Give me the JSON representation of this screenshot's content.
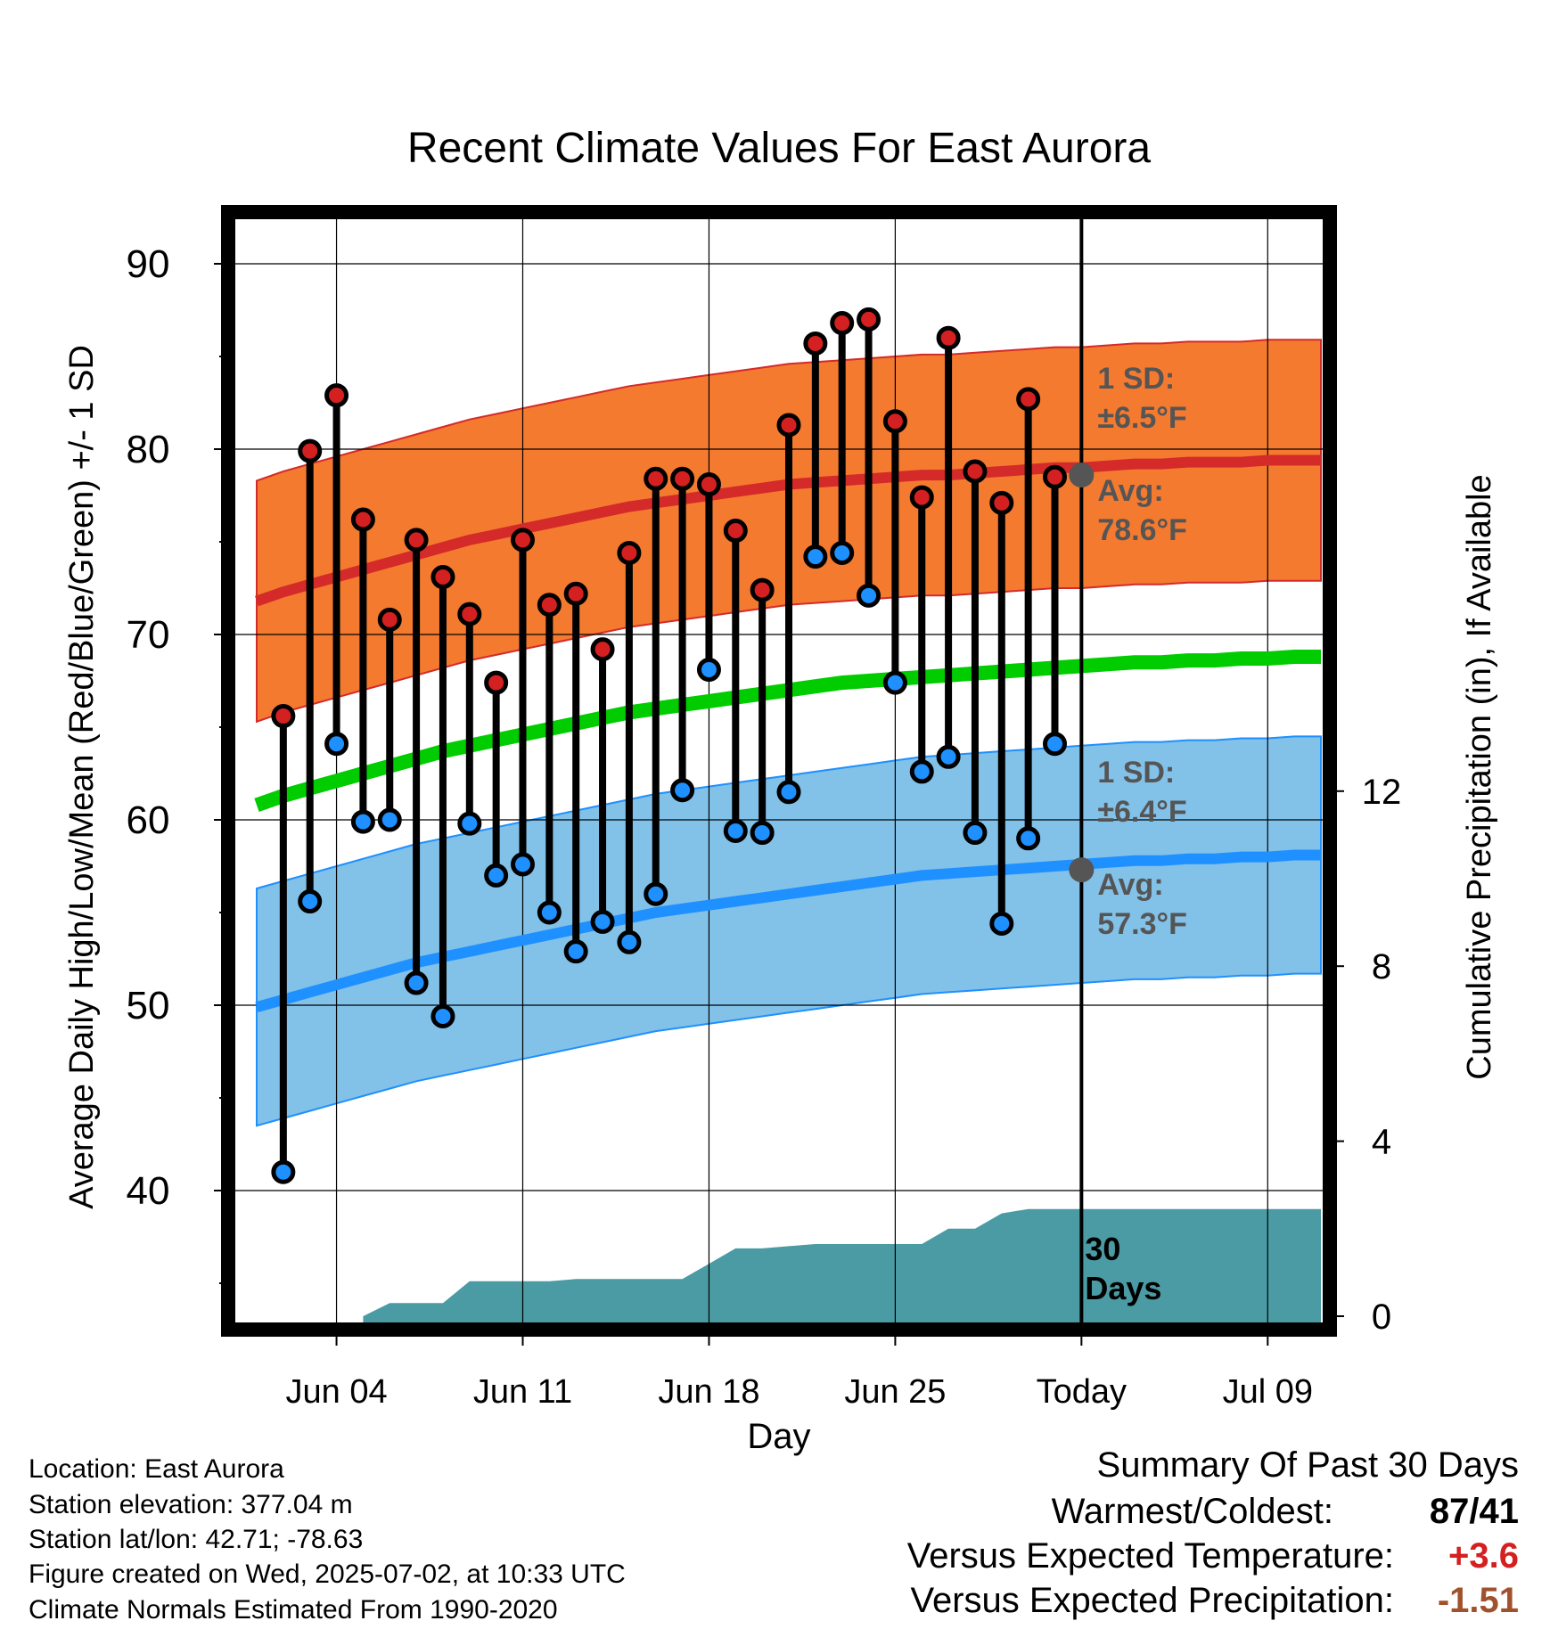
{
  "chart_data": {
    "type": "line",
    "title": "Recent Climate Values For East Aurora",
    "xlabel": "Day",
    "ylabel": "Average Daily High/Low/Mean (Red/Blue/Green) +/- 1 SD",
    "y2label": "Cumulative Precipitation (in), If Available",
    "x_tick_labels": [
      "Jun 04",
      "Jun 11",
      "Jun 18",
      "Jun 25",
      "Today",
      "Jul 09"
    ],
    "y_ticks": [
      40,
      50,
      60,
      70,
      80,
      90
    ],
    "y2_ticks": [
      0,
      4,
      8,
      12
    ],
    "ylim": [
      33.5,
      92.5
    ],
    "y2lim": [
      0,
      24
    ],
    "grid": true,
    "dates": [
      "Jun 01",
      "Jun 02",
      "Jun 03",
      "Jun 04",
      "Jun 05",
      "Jun 06",
      "Jun 07",
      "Jun 08",
      "Jun 09",
      "Jun 10",
      "Jun 11",
      "Jun 12",
      "Jun 13",
      "Jun 14",
      "Jun 15",
      "Jun 16",
      "Jun 17",
      "Jun 18",
      "Jun 19",
      "Jun 20",
      "Jun 21",
      "Jun 22",
      "Jun 23",
      "Jun 24",
      "Jun 25",
      "Jun 26",
      "Jun 27",
      "Jun 28",
      "Jun 29",
      "Jun 30",
      "Jul 01",
      "Jul 02",
      "Jul 03",
      "Jul 04",
      "Jul 05",
      "Jul 06",
      "Jul 07",
      "Jul 08",
      "Jul 09",
      "Jul 10",
      "Jul 11"
    ],
    "observed": {
      "dates": [
        "Jun 02",
        "Jun 03",
        "Jun 04",
        "Jun 05",
        "Jun 06",
        "Jun 07",
        "Jun 08",
        "Jun 09",
        "Jun 10",
        "Jun 11",
        "Jun 12",
        "Jun 13",
        "Jun 14",
        "Jun 15",
        "Jun 16",
        "Jun 17",
        "Jun 18",
        "Jun 19",
        "Jun 20",
        "Jun 21",
        "Jun 22",
        "Jun 23",
        "Jun 24",
        "Jun 25",
        "Jun 26",
        "Jun 27",
        "Jun 28",
        "Jun 29",
        "Jun 30",
        "Jul 01"
      ],
      "high": [
        65.6,
        79.9,
        82.9,
        76.2,
        70.8,
        75.1,
        73.1,
        71.1,
        67.4,
        75.1,
        71.6,
        72.2,
        69.2,
        74.4,
        78.4,
        78.4,
        78.1,
        75.6,
        72.4,
        81.3,
        85.7,
        86.8,
        87.0,
        81.5,
        77.4,
        86.0,
        78.8,
        77.1,
        82.7,
        78.5
      ],
      "low": [
        41.0,
        55.6,
        64.1,
        59.9,
        60.0,
        51.2,
        49.4,
        59.8,
        57.0,
        57.6,
        55.0,
        52.9,
        54.5,
        53.4,
        56.0,
        61.6,
        68.1,
        59.4,
        59.3,
        61.5,
        74.2,
        74.4,
        72.1,
        67.4,
        62.6,
        63.4,
        59.3,
        54.4,
        59.0,
        64.1
      ]
    },
    "normals": {
      "high_mean": [
        71.8,
        72.3,
        72.7,
        73.1,
        73.5,
        73.9,
        74.3,
        74.7,
        75.1,
        75.4,
        75.7,
        76.0,
        76.3,
        76.6,
        76.9,
        77.1,
        77.3,
        77.5,
        77.7,
        77.9,
        78.1,
        78.2,
        78.3,
        78.4,
        78.5,
        78.6,
        78.6,
        78.7,
        78.8,
        78.9,
        79.0,
        79.0,
        79.1,
        79.2,
        79.2,
        79.3,
        79.3,
        79.3,
        79.4,
        79.4,
        79.4
      ],
      "high_sd": 6.5,
      "low_mean": [
        49.9,
        50.3,
        50.7,
        51.1,
        51.5,
        51.9,
        52.3,
        52.6,
        52.9,
        53.2,
        53.5,
        53.8,
        54.1,
        54.4,
        54.7,
        55.0,
        55.2,
        55.4,
        55.6,
        55.8,
        56.0,
        56.2,
        56.4,
        56.6,
        56.8,
        57.0,
        57.1,
        57.2,
        57.3,
        57.4,
        57.5,
        57.6,
        57.7,
        57.8,
        57.8,
        57.9,
        57.9,
        58.0,
        58.0,
        58.1,
        58.1
      ],
      "low_sd": 6.4,
      "mean": [
        60.8,
        61.3,
        61.7,
        62.1,
        62.5,
        62.9,
        63.3,
        63.7,
        64.0,
        64.3,
        64.6,
        64.9,
        65.2,
        65.5,
        65.8,
        66.0,
        66.2,
        66.4,
        66.6,
        66.8,
        67.0,
        67.2,
        67.4,
        67.5,
        67.6,
        67.7,
        67.8,
        67.9,
        68.0,
        68.1,
        68.2,
        68.3,
        68.4,
        68.5,
        68.5,
        68.6,
        68.6,
        68.7,
        68.7,
        68.8,
        68.8
      ]
    },
    "precip_cumulative": {
      "dates": [
        "Jun 05",
        "Jun 06",
        "Jun 07",
        "Jun 08",
        "Jun 09",
        "Jun 10",
        "Jun 11",
        "Jun 12",
        "Jun 13",
        "Jun 14",
        "Jun 15",
        "Jun 16",
        "Jun 17",
        "Jun 18",
        "Jun 19",
        "Jun 20",
        "Jun 21",
        "Jun 22",
        "Jun 23",
        "Jun 24",
        "Jun 25",
        "Jun 26",
        "Jun 27",
        "Jun 28",
        "Jun 29",
        "Jun 30",
        "Jul 01"
      ],
      "values": [
        0.0,
        0.3,
        0.3,
        0.3,
        0.8,
        0.8,
        0.8,
        0.8,
        0.85,
        0.85,
        0.85,
        0.85,
        0.85,
        1.2,
        1.55,
        1.55,
        1.6,
        1.65,
        1.65,
        1.65,
        1.65,
        1.65,
        2.0,
        2.0,
        2.35,
        2.45,
        2.45
      ],
      "today_value": 2.45,
      "color": "#4a9ba3"
    },
    "annotations": {
      "high_sd_title": "1 SD:",
      "high_sd_value": "±6.5°F",
      "high_avg_title": "Avg:",
      "high_avg_value": "78.6°F",
      "high_avg": 78.6,
      "low_sd_title": "1 SD:",
      "low_sd_value": "±6.4°F",
      "low_avg_title": "Avg:",
      "low_avg_value": "57.3°F",
      "low_avg": 57.3,
      "precip_days_line1": "30",
      "precip_days_line2": "Days"
    },
    "colors": {
      "high_band": "#f47a2f",
      "high_line": "#d42a2a",
      "low_band": "#82c1e8",
      "low_line": "#1e90ff",
      "mean_line": "#00cc00",
      "high_marker": "#d42020",
      "low_marker": "#1e90ff",
      "annotation_text": "#555555"
    }
  },
  "info": {
    "location": "Location: East Aurora",
    "elevation": "Station elevation: 377.04 m",
    "latlon": "Station lat/lon: 42.71; -78.63",
    "created": "Figure created on Wed, 2025-07-02, at 10:33 UTC",
    "normals": "Climate Normals Estimated From 1990-2020"
  },
  "summary": {
    "title": "Summary Of Past 30 Days",
    "warmest_label": "Warmest/Coldest:",
    "warmest_value": "87/41",
    "temp_label": "Versus Expected Temperature:",
    "temp_value": "+3.6",
    "temp_color": "#d42020",
    "precip_label": "Versus Expected Precipitation:",
    "precip_value": "-1.51",
    "precip_color": "#a0522d"
  }
}
